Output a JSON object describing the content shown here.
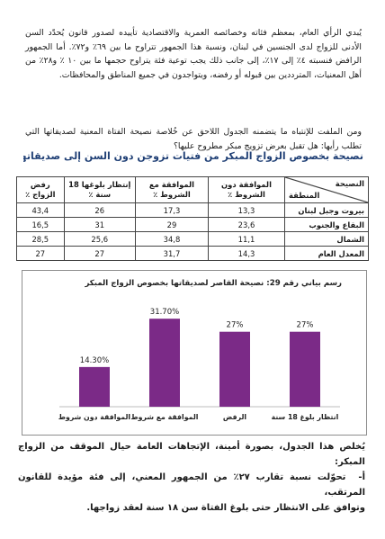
{
  "paragraphs": {
    "p1": "يُبدي الرأي العام، بمعظم فئاته وخصائصه العمرية والاقتصادية تأييده لصدور قانون يُحدّد السن الأدنى للزواج لدى الجنسين في لبنان، ونسبة هذا الجمهور تتراوح ما بين ٦٩٪ و٧٢٪. أما الجمهور الرافض فنسبته ٤٪ إلى ١٧٪، إلى جانب ذلك يجب توعية فئة يتراوح حجمها ما بين ١٠ ٪ و٢٨٪ من أهل المعنيات، المترددين بين قبوله أو رفضه، ويتواجدون في جميع المناطق والمحافظات.",
    "p2": "ومن الملفت للإنتباه ما يتضمنه الجدول اللاحق عن خُلاصة نصيحة الفتاة المعنية لصديقاتها التي تطلب رأيها: هل تقبل بعرض تزويج مبكر مطروح عليها؟"
  },
  "heading": "نصيحة بخصوص الزواج المبكر من فتيات تزوجن دون السن إلى صديقاتهن:",
  "table": {
    "corner_top": "النصيحة",
    "corner_bottom": "المنطقة",
    "columns": [
      "الموافقة دون الشروط ٪",
      "الموافقة مع الشروط ٪",
      "إنتظار بلوغها 18 سنة ٪",
      "رفض الزواج ٪"
    ],
    "rows": [
      {
        "region": "بيروت وجبل لبنان",
        "values": [
          "13,3",
          "17,3",
          "26",
          "43,4"
        ]
      },
      {
        "region": "البقاع والجنوب",
        "values": [
          "23,6",
          "29",
          "31",
          "16,5"
        ]
      },
      {
        "region": "الشمال",
        "values": [
          "11,1",
          "34,8",
          "25,6",
          "28,5"
        ]
      },
      {
        "region": "المعدل العام",
        "values": [
          "14,3",
          "31,7",
          "27",
          "27"
        ]
      }
    ]
  },
  "chart_title": "رسم بياني رقم 29: نصيحة القاصر لصديقاتها بخصوص الزواج المبكر",
  "chart_data": {
    "type": "bar",
    "title": "رسم بياني رقم 29: نصيحة القاصر لصديقاتها بخصوص الزواج المبكر",
    "categories": [
      "الموافقة دون شروط",
      "الموافقة مع شروط",
      "الرفض",
      "انتظار بلوغ 18 سنة"
    ],
    "values": [
      14.3,
      31.7,
      27,
      27
    ],
    "value_labels": [
      "14.30%",
      "31.70%",
      "27%",
      "27%"
    ],
    "ylim": [
      0,
      35
    ],
    "bar_color": "#7b2a87",
    "grid": false,
    "legend": "none"
  },
  "conclusion": {
    "line1": "يُخلص هذا الجدول، بصورة أمينة، الإتجاهات العامة حيال الموقف من الزواج المبكر:",
    "marker": "أ-",
    "line2": "تحوّلت نسبة تقارب ٢٧٪ من الجمهور المعني، إلى فئة مؤيدة للقانون المرتقب،",
    "line3": "وتوافق على الانتظار حتى بلوغ الفتاة سن ١٨ سنة لعقد زواجها."
  },
  "colors": {
    "heading": "#1f3f75",
    "bar": "#7b2a87"
  }
}
